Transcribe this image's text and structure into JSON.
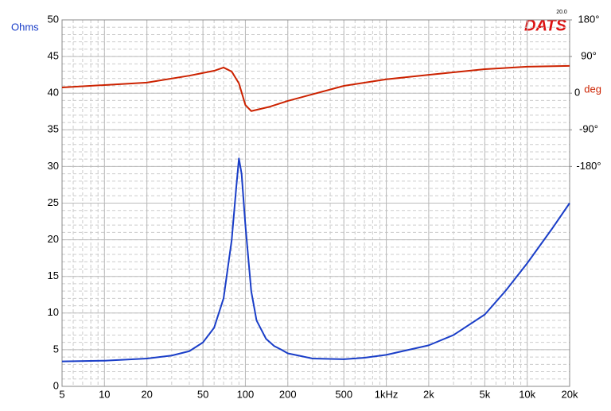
{
  "chart_data": {
    "type": "line",
    "brand": "DATS",
    "brand_version": "20.0",
    "ylabel": "Ohms",
    "y2label": "deg",
    "xscale": "log",
    "grid": true,
    "xlim": [
      5,
      20000
    ],
    "xticks": [
      5,
      10,
      20,
      50,
      100,
      200,
      500,
      {
        "value": 1000,
        "label": "1kHz"
      },
      {
        "value": 2000,
        "label": "2k"
      },
      {
        "value": 5000,
        "label": "5k"
      },
      {
        "value": 10000,
        "label": "10k"
      },
      {
        "value": 20000,
        "label": "20k"
      }
    ],
    "ylim": [
      0,
      50
    ],
    "yticks": [
      0,
      5,
      10,
      15,
      20,
      25,
      30,
      35,
      40,
      45,
      50
    ],
    "y2lim": [
      -720,
      180
    ],
    "y2ticks": [
      {
        "value": -180,
        "label": "-180°"
      },
      {
        "value": -90,
        "label": "-90°"
      },
      0,
      {
        "value": 90,
        "label": "90°"
      },
      {
        "value": 180,
        "label": "180°"
      }
    ],
    "series": [
      {
        "color": "#1a3ec8",
        "x": [
          5,
          10,
          20,
          30,
          40,
          50,
          60,
          70,
          80,
          86,
          90,
          94,
          100,
          110,
          120,
          140,
          160,
          180,
          200,
          300,
          500,
          700,
          1000,
          2000,
          3000,
          5000,
          7000,
          10000,
          15000,
          20000
        ],
        "values": [
          3.4,
          3.5,
          3.8,
          4.2,
          4.8,
          6,
          8,
          12,
          20,
          27,
          31.1,
          29,
          22,
          13,
          9,
          6.5,
          5.5,
          5,
          4.5,
          3.8,
          3.7,
          3.9,
          4.3,
          5.6,
          7,
          9.8,
          13,
          16.8,
          21.5,
          25
        ]
      },
      {
        "color": "#cc2200",
        "axis": "y2",
        "x": [
          5,
          20,
          40,
          60,
          70,
          80,
          90,
          100,
          110,
          150,
          200,
          500,
          1000,
          2000,
          5000,
          10000,
          20000
        ],
        "values": [
          14,
          26,
          43,
          55,
          63,
          53,
          24,
          -29,
          -44,
          -33,
          -19,
          18,
          34,
          45,
          59,
          65,
          67
        ]
      }
    ]
  }
}
